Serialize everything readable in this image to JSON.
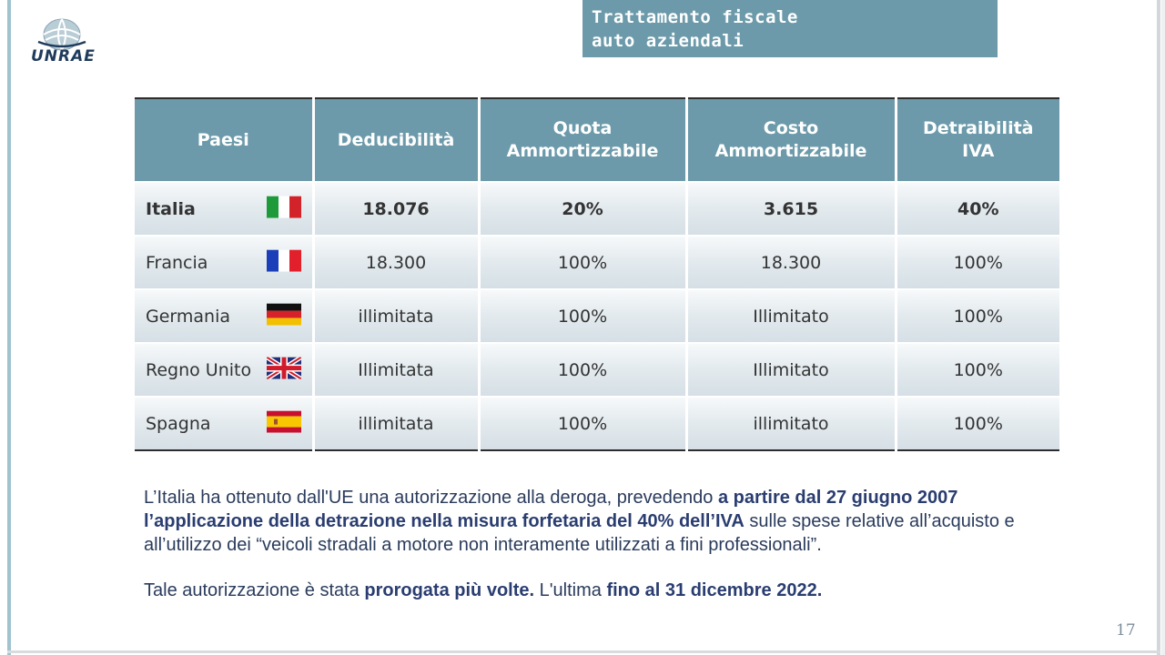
{
  "logo": {
    "text": "UNRAE"
  },
  "title": {
    "line1": "Trattamento fiscale",
    "line2": "auto aziendali"
  },
  "table": {
    "headers": [
      "Paesi",
      "Deducibilità",
      "Quota Ammortizzabile",
      "Costo Ammortizzabile",
      "Detraibilità IVA"
    ],
    "rows": [
      {
        "country": "Italia",
        "flag": "italy-flag",
        "deducibilita": "18.076",
        "quota": "20%",
        "costo": "3.615",
        "iva": "40%",
        "highlight": true
      },
      {
        "country": "Francia",
        "flag": "france-flag",
        "deducibilita": "18.300",
        "quota": "100%",
        "costo": "18.300",
        "iva": "100%"
      },
      {
        "country": "Germania",
        "flag": "germany-flag",
        "deducibilita": "illimitata",
        "quota": "100%",
        "costo": "Illimitato",
        "iva": "100%"
      },
      {
        "country": "Regno Unito",
        "flag": "uk-flag",
        "deducibilita": "Illimitata",
        "quota": "100%",
        "costo": "Illimitato",
        "iva": "100%"
      },
      {
        "country": "Spagna",
        "flag": "spain-flag",
        "deducibilita": "illimitata",
        "quota": "100%",
        "costo": "illimitato",
        "iva": "100%"
      }
    ]
  },
  "paragraph1": {
    "part1": "L’Italia ha ottenuto dall'UE una autorizzazione alla deroga, prevedendo ",
    "bold1": "a partire dal 27 giugno 2007 l’applicazione della detrazione nella misura forfetaria del 40% dell’IVA",
    "part2": " sulle spese relative all’acquisto e all’utilizzo dei “veicoli stradali a motore non interamente utilizzati a fini professionali”."
  },
  "paragraph2": {
    "part1": "Tale autorizzazione è stata ",
    "bold1": "prorogata più volte.",
    "part2": " L'ultima ",
    "bold2": "fino al 31 dicembre 2022."
  },
  "page_number": "17",
  "colors": {
    "header_bg": "#6c9aaa",
    "text_blue": "#2a3d70"
  }
}
